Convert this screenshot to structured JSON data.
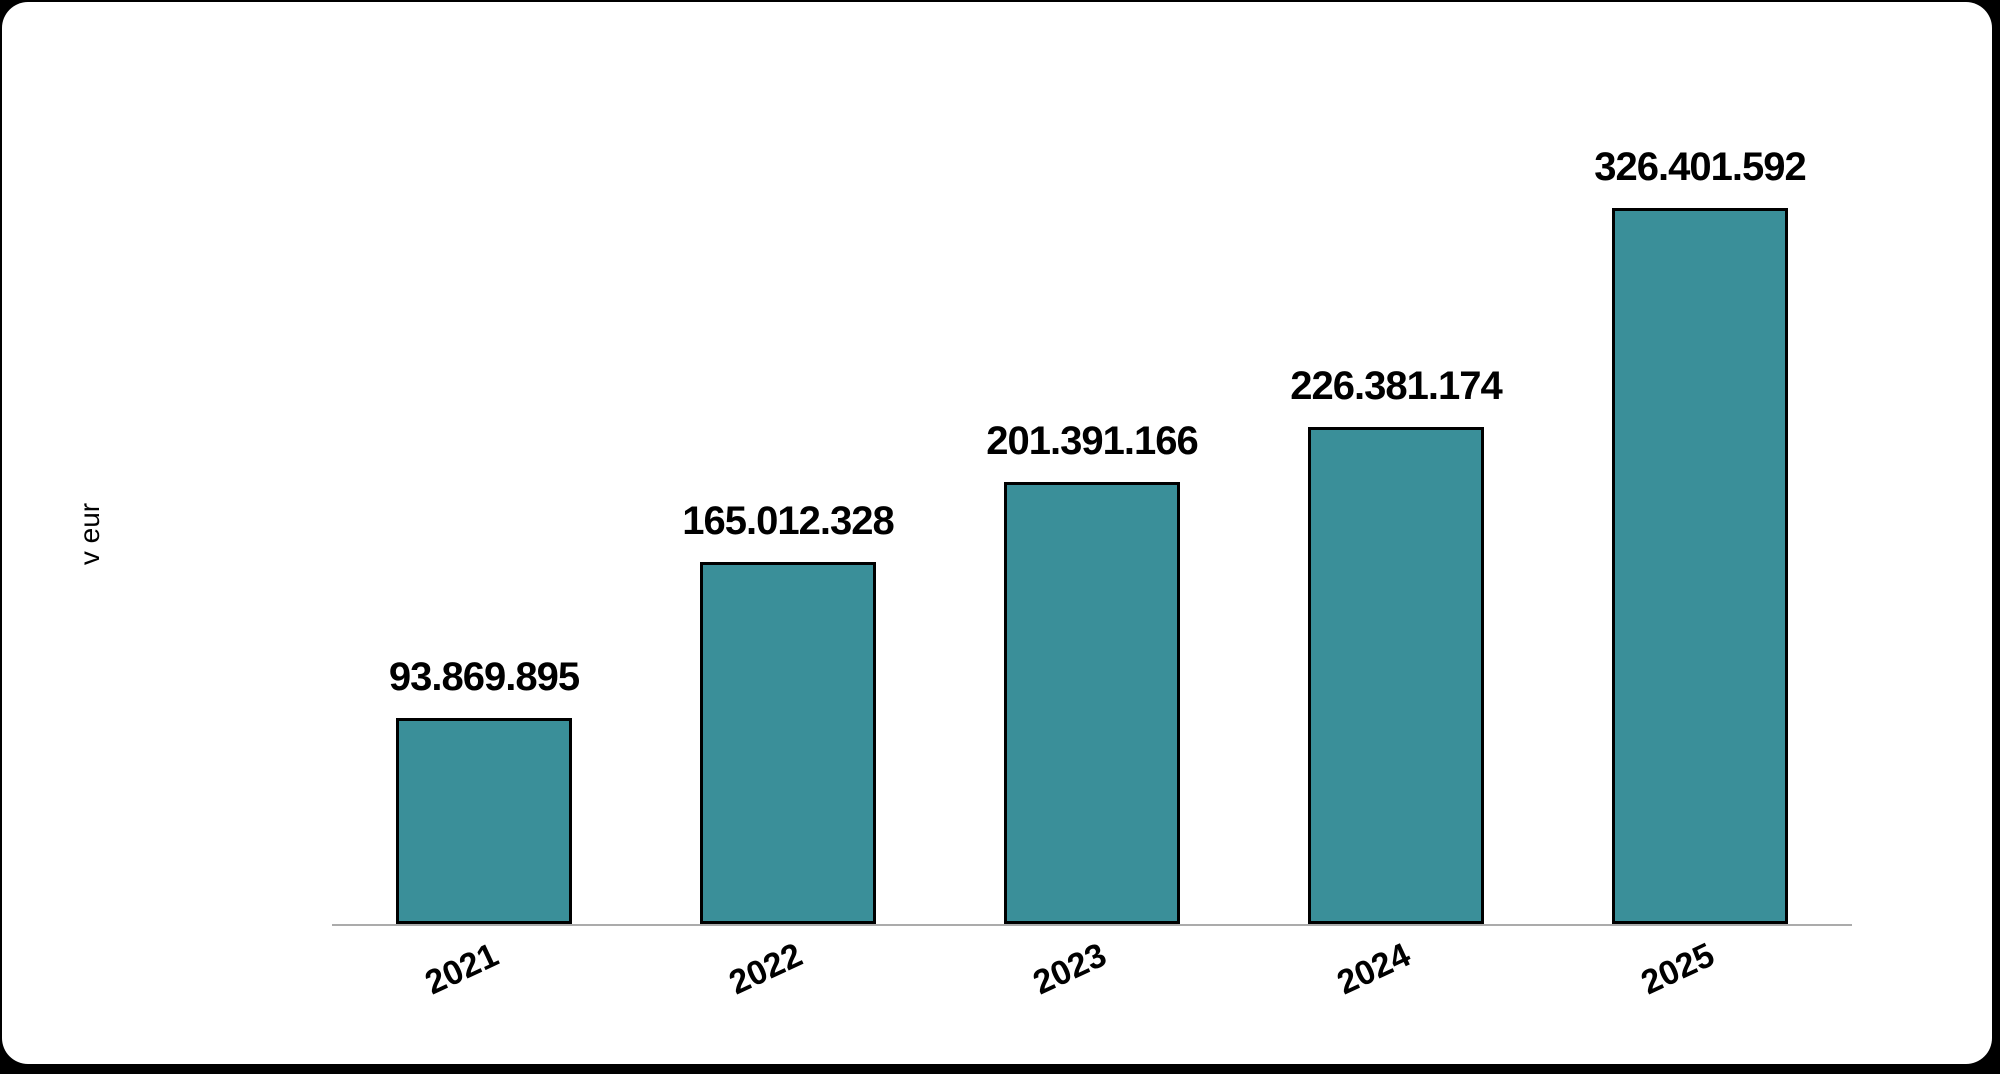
{
  "page": {
    "background_color": "#000000",
    "card_background": "#ffffff"
  },
  "chart_data": {
    "type": "bar",
    "title": "",
    "xlabel": "",
    "ylabel": "v eur",
    "categories": [
      "2021",
      "2022",
      "2023",
      "2024",
      "2025"
    ],
    "values": [
      93869895,
      165012328,
      201391166,
      226381174,
      326401592
    ],
    "value_labels": [
      "93.869.895",
      "165.012.328",
      "201.391.166",
      "226.381.174",
      "326.401.592"
    ],
    "ylim": [
      0,
      326401592
    ],
    "grid": false,
    "legend": false,
    "bar_color": "#3a8f99",
    "bar_border_color": "#000000",
    "axis_line_color": "#ababab",
    "label_color": "#000000"
  }
}
